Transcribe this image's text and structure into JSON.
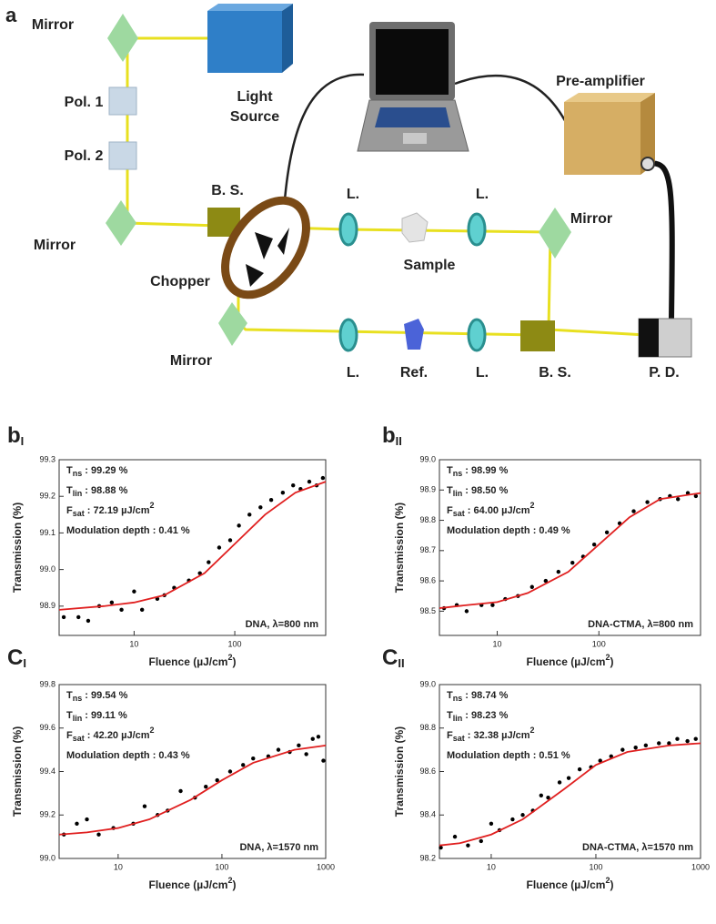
{
  "diagram": {
    "panel": "a",
    "labels": [
      "Mirror",
      "Pol. 1",
      "Pol. 2",
      "Mirror",
      "Light",
      "Source",
      "Pre-amplifier",
      "B. S.",
      "Chopper",
      "Mirror",
      "L.",
      "L.",
      "Sample",
      "Mirror",
      "L.",
      "Ref.",
      "L.",
      "B. S.",
      "P. D."
    ]
  },
  "chart_data": [
    {
      "type": "scatter",
      "panel": {
        "letter": "b",
        "sub": "I"
      },
      "log_x": true,
      "xlabel": {
        "text": "Fluence (µJ/cm",
        "sup": "2",
        "end": ")"
      },
      "ylabel": "Transmission (%)",
      "legend": "DNA, λ=800 nm",
      "annotations": [
        {
          "main": "T",
          "sub": "ns",
          "rest": " : 99.29 %"
        },
        {
          "main": "T",
          "sub": "lin",
          "rest": " : 98.88 %"
        },
        {
          "main": "F",
          "sub": "sat",
          "rest": " : 72.19 µJ/cm",
          "sup": "2"
        },
        {
          "main": "Modulation depth :  0.41 %"
        }
      ],
      "xlim": [
        1.8,
        800
      ],
      "xticks": [
        10,
        100
      ],
      "ylim": [
        98.82,
        99.3
      ],
      "yticks": [
        98.9,
        {
          "value": 99,
          "label": "99.0"
        },
        99.1,
        99.2,
        99.3
      ],
      "series": [
        {
          "color": "#000000",
          "x": [
            2,
            2.8,
            3.5,
            4.5,
            6,
            7.5,
            10,
            12,
            17,
            20,
            25,
            35,
            45,
            55,
            70,
            90,
            110,
            140,
            180,
            230,
            300,
            380,
            450,
            550,
            650,
            750
          ],
          "values": [
            98.87,
            98.87,
            98.86,
            98.9,
            98.91,
            98.89,
            98.94,
            98.89,
            98.92,
            98.93,
            98.95,
            98.97,
            98.99,
            99.02,
            99.06,
            99.08,
            99.12,
            99.15,
            99.17,
            99.19,
            99.21,
            99.23,
            99.22,
            99.24,
            99.23,
            99.25
          ]
        },
        {
          "type": "line",
          "color": "#e02020",
          "x": [
            1.8,
            5,
            10,
            20,
            50,
            100,
            200,
            400,
            800
          ],
          "values": [
            98.89,
            98.9,
            98.91,
            98.93,
            98.99,
            99.07,
            99.15,
            99.21,
            99.24
          ]
        }
      ]
    },
    {
      "type": "scatter",
      "panel": {
        "letter": "b",
        "sub": "II"
      },
      "log_x": true,
      "xlabel": {
        "text": "Fluence (µJ/cm",
        "sup": "2",
        "end": ")"
      },
      "ylabel": "Transmission (%)",
      "legend": "DNA-CTMA, λ=800 nm",
      "annotations": [
        {
          "main": "T",
          "sub": "ns",
          "rest": " : 98.99 %"
        },
        {
          "main": "T",
          "sub": "lin",
          "rest": " : 98.50 %"
        },
        {
          "main": "F",
          "sub": "sat",
          "rest": " : 64.00 µJ/cm",
          "sup": "2"
        },
        {
          "main": "Modulation depth :  0.49 %"
        }
      ],
      "xlim": [
        2.7,
        1000
      ],
      "xticks": [
        10,
        100
      ],
      "ylim": [
        98.42,
        99.0
      ],
      "yticks": [
        98.5,
        98.6,
        98.7,
        98.8,
        98.9,
        {
          "value": 99,
          "label": "99.0"
        }
      ],
      "series": [
        {
          "color": "#000000",
          "x": [
            3,
            4,
            5,
            7,
            9,
            12,
            16,
            22,
            30,
            40,
            55,
            70,
            90,
            120,
            160,
            220,
            300,
            400,
            500,
            600,
            750,
            900
          ],
          "values": [
            98.51,
            98.52,
            98.5,
            98.52,
            98.52,
            98.54,
            98.55,
            98.58,
            98.6,
            98.63,
            98.66,
            98.68,
            98.72,
            98.76,
            98.79,
            98.83,
            98.86,
            98.87,
            98.88,
            98.87,
            98.89,
            98.88
          ]
        },
        {
          "type": "line",
          "color": "#e02020",
          "x": [
            2.7,
            5,
            10,
            20,
            50,
            100,
            200,
            400,
            1000
          ],
          "values": [
            98.51,
            98.52,
            98.53,
            98.56,
            98.63,
            98.72,
            98.81,
            98.87,
            98.89
          ]
        }
      ]
    },
    {
      "type": "scatter",
      "panel": {
        "letter": "C",
        "sub": "I"
      },
      "log_x": true,
      "xlabel": {
        "text": "Fluence (µJ/cm",
        "sup": "2",
        "end": ")"
      },
      "ylabel": "Transmission (%)",
      "legend": "DNA, λ=1570 nm",
      "annotations": [
        {
          "main": "T",
          "sub": "ns",
          "rest": " : 99.54 %"
        },
        {
          "main": "T",
          "sub": "lin",
          "rest": " : 99.11 %"
        },
        {
          "main": "F",
          "sub": "sat",
          "rest": " : 42.20 µJ/cm",
          "sup": "2"
        },
        {
          "main": "Modulation depth :  0.43 %"
        }
      ],
      "xlim": [
        2.7,
        1000
      ],
      "xticks": [
        10,
        100,
        1000
      ],
      "ylim": [
        99,
        99.8
      ],
      "yticks": [
        {
          "value": 99,
          "label": "99.0"
        },
        99.2,
        99.4,
        99.6,
        99.8
      ],
      "series": [
        {
          "color": "#000000",
          "x": [
            3,
            4,
            5,
            6.5,
            9,
            14,
            18,
            24,
            30,
            40,
            55,
            70,
            90,
            120,
            160,
            200,
            280,
            350,
            450,
            550,
            650,
            750,
            850,
            950
          ],
          "values": [
            99.11,
            99.16,
            99.18,
            99.11,
            99.14,
            99.16,
            99.24,
            99.2,
            99.22,
            99.31,
            99.28,
            99.33,
            99.36,
            99.4,
            99.43,
            99.46,
            99.47,
            99.5,
            99.49,
            99.52,
            99.48,
            99.55,
            99.56,
            99.45
          ]
        },
        {
          "type": "line",
          "color": "#e02020",
          "x": [
            2.7,
            5,
            10,
            20,
            50,
            100,
            200,
            500,
            1000
          ],
          "values": [
            99.11,
            99.12,
            99.14,
            99.18,
            99.27,
            99.36,
            99.44,
            99.5,
            99.52
          ]
        }
      ]
    },
    {
      "type": "scatter",
      "panel": {
        "letter": "C",
        "sub": "II"
      },
      "log_x": true,
      "xlabel": {
        "text": "Fluence (µJ/cm",
        "sup": "2",
        "end": ")"
      },
      "ylabel": "Transmission (%)",
      "legend": "DNA-CTMA, λ=1570 nm",
      "annotations": [
        {
          "main": "T",
          "sub": "ns",
          "rest": " : 98.74 %"
        },
        {
          "main": "T",
          "sub": "lin",
          "rest": " : 98.23 %"
        },
        {
          "main": "F",
          "sub": "sat",
          "rest": " : 32.38 µJ/cm",
          "sup": "2"
        },
        {
          "main": "Modulation depth :  0.51 %"
        }
      ],
      "xlim": [
        3.2,
        1000
      ],
      "xticks": [
        10,
        100,
        1000
      ],
      "ylim": [
        98.2,
        99
      ],
      "yticks": [
        98.2,
        98.4,
        98.6,
        98.8,
        {
          "value": 99,
          "label": "99.0"
        }
      ],
      "series": [
        {
          "color": "#000000",
          "x": [
            3.3,
            4.5,
            6,
            8,
            10,
            12,
            16,
            20,
            25,
            30,
            35,
            45,
            55,
            70,
            90,
            110,
            140,
            180,
            240,
            300,
            400,
            500,
            600,
            750,
            900
          ],
          "values": [
            98.25,
            98.3,
            98.26,
            98.28,
            98.36,
            98.33,
            98.38,
            98.4,
            98.42,
            98.49,
            98.48,
            98.55,
            98.57,
            98.61,
            98.62,
            98.65,
            98.67,
            98.7,
            98.71,
            98.72,
            98.73,
            98.73,
            98.75,
            98.74,
            98.75
          ]
        },
        {
          "type": "line",
          "color": "#e02020",
          "x": [
            3.2,
            5,
            10,
            20,
            50,
            100,
            200,
            500,
            1000
          ],
          "values": [
            98.26,
            98.27,
            98.31,
            98.38,
            98.52,
            98.63,
            98.69,
            98.72,
            98.73
          ]
        }
      ]
    }
  ]
}
